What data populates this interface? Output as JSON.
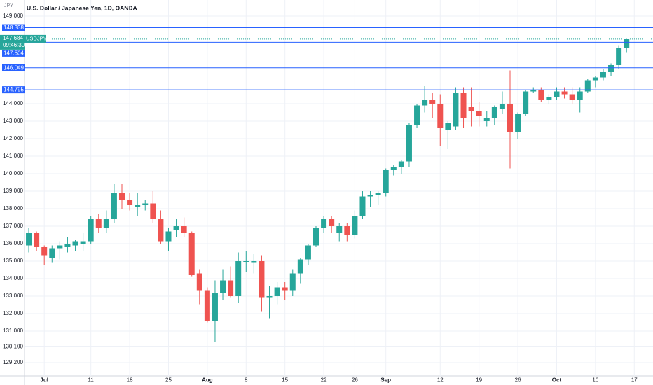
{
  "chart_data": {
    "type": "candlestick",
    "title": "U.S. Dollar / Japanese Yen, 1D, OANDA",
    "currency": "JPY",
    "symbol": "USDJPY",
    "countdown": "09:46:30",
    "last_price": 147.684,
    "price_lines": [
      148.338,
      147.504,
      146.049,
      144.795
    ],
    "up_color": "#26a69a",
    "down_color": "#ef5350",
    "line_color": "#2962ff",
    "grid": true,
    "ylim": [
      128.44,
      149.92
    ],
    "yticks": [
      {
        "value": 149,
        "label": "149.000"
      },
      {
        "value": 144,
        "label": "144.000"
      },
      {
        "value": 143,
        "label": "143.000"
      },
      {
        "value": 142,
        "label": "142.000"
      },
      {
        "value": 141,
        "label": "141.000"
      },
      {
        "value": 140,
        "label": "140.000"
      },
      {
        "value": 139,
        "label": "139.000"
      },
      {
        "value": 138,
        "label": "138.000"
      },
      {
        "value": 137,
        "label": "137.000"
      },
      {
        "value": 136,
        "label": "136.000"
      },
      {
        "value": 135,
        "label": "135.000"
      },
      {
        "value": 134,
        "label": "134.000"
      },
      {
        "value": 133,
        "label": "133.000"
      },
      {
        "value": 132,
        "label": "132.000"
      },
      {
        "value": 131,
        "label": "131.000"
      },
      {
        "value": 130.1,
        "label": "130.100"
      },
      {
        "value": 129.2,
        "label": "129.200"
      }
    ],
    "categories": [
      null,
      null,
      "Jul",
      null,
      null,
      null,
      null,
      null,
      "11",
      null,
      null,
      null,
      null,
      "18",
      null,
      null,
      null,
      null,
      "25",
      null,
      null,
      null,
      null,
      "Aug",
      null,
      null,
      null,
      null,
      "8",
      null,
      null,
      null,
      null,
      "15",
      null,
      null,
      null,
      null,
      "22",
      null,
      null,
      null,
      "26",
      null,
      null,
      null,
      "Sep",
      null,
      null,
      null,
      null,
      null,
      null,
      "12",
      null,
      null,
      null,
      null,
      "19",
      null,
      null,
      null,
      null,
      "26",
      null,
      null,
      null,
      null,
      "Oct",
      null,
      null,
      null,
      null,
      "10",
      null,
      null,
      null,
      null,
      "17"
    ],
    "open": [
      135.9,
      136.6,
      135.8,
      135.2,
      135.7,
      135.8,
      135.9,
      136.0,
      136.1,
      137.4,
      136.9,
      137.4,
      138.9,
      138.5,
      138.1,
      138.2,
      138.3,
      137.4,
      136.1,
      136.8,
      137.0,
      136.6,
      134.3,
      133.3,
      131.6,
      133.2,
      133.9,
      133.0,
      135.0,
      134.9,
      135.0,
      132.9,
      133.0,
      133.5,
      133.3,
      134.3,
      135.1,
      135.9,
      136.9,
      137.4,
      136.6,
      137.0,
      136.5,
      137.6,
      138.7,
      138.8,
      138.9,
      140.2,
      140.4,
      140.7,
      142.8,
      143.9,
      144.2,
      144.0,
      142.5,
      142.7,
      144.6,
      143.8,
      143.6,
      143.0,
      143.2,
      143.7,
      144.0,
      142.4,
      143.4,
      144.7,
      144.8,
      144.2,
      144.4,
      144.7,
      144.5,
      144.2,
      144.7,
      145.3,
      145.5,
      145.8,
      146.2,
      147.2,
      null
    ],
    "high": [
      136.9,
      136.7,
      135.9,
      135.9,
      136.1,
      136.4,
      136.2,
      136.6,
      137.6,
      137.7,
      137.9,
      139.4,
      139.4,
      138.9,
      138.9,
      138.5,
      139.0,
      137.9,
      136.9,
      137.4,
      137.5,
      136.7,
      134.5,
      133.5,
      133.9,
      134.5,
      134.7,
      135.5,
      135.6,
      135.4,
      135.3,
      133.6,
      133.8,
      133.8,
      134.5,
      135.2,
      136.0,
      137.0,
      137.6,
      137.6,
      137.2,
      137.2,
      137.9,
      139.0,
      139.0,
      139.0,
      140.3,
      140.5,
      140.8,
      142.9,
      144.0,
      145.0,
      144.6,
      144.5,
      143.0,
      144.9,
      144.9,
      144.9,
      144.1,
      143.6,
      143.9,
      144.7,
      145.9,
      143.5,
      144.8,
      144.9,
      144.9,
      144.5,
      144.9,
      144.9,
      144.9,
      144.9,
      145.4,
      145.6,
      146.0,
      146.3,
      147.3,
      147.7,
      null
    ],
    "low": [
      135.5,
      135.6,
      134.8,
      134.9,
      135.1,
      135.5,
      135.6,
      135.6,
      136.0,
      136.6,
      136.6,
      137.2,
      138.0,
      137.9,
      137.6,
      137.9,
      137.2,
      136.0,
      135.6,
      136.4,
      136.4,
      134.1,
      132.5,
      131.5,
      130.4,
      132.8,
      132.9,
      132.6,
      134.4,
      134.3,
      132.1,
      131.7,
      132.5,
      132.8,
      133.0,
      133.7,
      134.8,
      135.8,
      136.6,
      136.6,
      136.1,
      136.1,
      136.3,
      137.4,
      138.1,
      138.2,
      138.7,
      139.9,
      140.0,
      140.4,
      142.6,
      143.5,
      143.2,
      141.6,
      141.4,
      142.5,
      142.6,
      142.7,
      142.7,
      142.7,
      142.8,
      143.4,
      140.3,
      142.0,
      143.3,
      144.6,
      144.1,
      144.0,
      144.2,
      144.3,
      144.0,
      143.5,
      144.6,
      144.9,
      145.3,
      145.6,
      146.0,
      146.9,
      null
    ],
    "close": [
      136.6,
      135.8,
      135.3,
      135.7,
      135.9,
      136.0,
      136.1,
      136.1,
      137.4,
      136.9,
      137.4,
      138.9,
      138.5,
      138.2,
      138.2,
      138.3,
      137.4,
      136.1,
      136.7,
      137.0,
      136.6,
      134.2,
      133.3,
      131.6,
      133.2,
      133.9,
      133.0,
      135.0,
      135.0,
      135.0,
      132.9,
      133.0,
      133.5,
      133.3,
      134.3,
      135.1,
      135.9,
      136.9,
      137.4,
      137.0,
      137.0,
      136.5,
      137.6,
      138.7,
      138.8,
      138.9,
      140.2,
      140.4,
      140.7,
      142.8,
      143.9,
      144.2,
      144.0,
      142.6,
      142.9,
      144.6,
      143.2,
      143.6,
      143.3,
      143.2,
      143.8,
      144.0,
      142.4,
      143.4,
      144.7,
      144.8,
      144.2,
      144.4,
      144.7,
      144.5,
      144.2,
      144.7,
      145.3,
      145.5,
      145.8,
      146.2,
      147.2,
      147.68,
      null
    ]
  }
}
